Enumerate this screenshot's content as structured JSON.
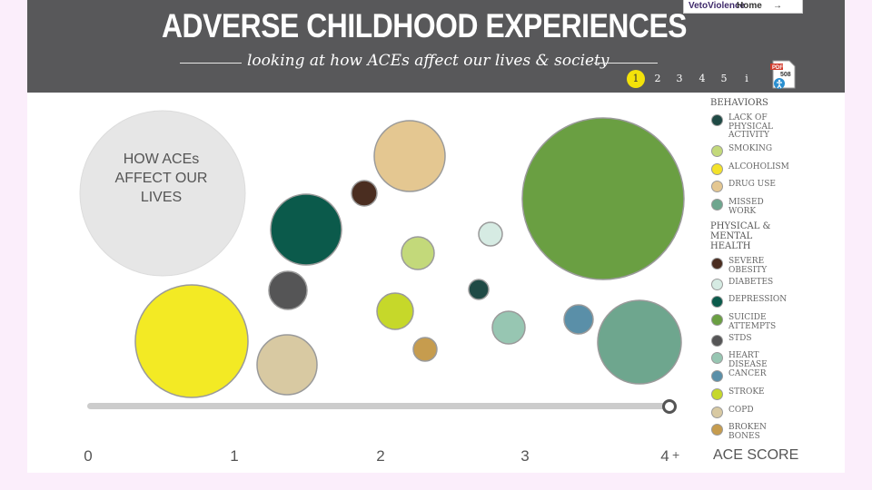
{
  "header": {
    "title": "ADVERSE CHILDHOOD EXPERIENCES",
    "subtitle": "looking at how ACEs affect our lives & society",
    "brand": "VetoViolence",
    "home_link": "Home",
    "home_arrow": "→",
    "pages": [
      "1",
      "2",
      "3",
      "4",
      "5",
      "i"
    ],
    "active_page": "1",
    "pdf_label": "508"
  },
  "center_label": "HOW ACEs AFFECT OUR LIVES",
  "legend": {
    "behaviors_title": "BEHAVIORS",
    "behaviors": [
      {
        "label": "LACK OF PHYSICAL ACTIVITY",
        "color": "#1f4a45"
      },
      {
        "label": "SMOKING",
        "color": "#c3d97a"
      },
      {
        "label": "ALCOHOLISM",
        "color": "#f3e22a"
      },
      {
        "label": "DRUG USE",
        "color": "#e4c791"
      },
      {
        "label": "MISSED WORK",
        "color": "#6ea68e"
      }
    ],
    "health_title": "PHYSICAL & MENTAL HEALTH",
    "health": [
      {
        "label": "SEVERE OBESITY",
        "color": "#4a2d20"
      },
      {
        "label": "DIABETES",
        "color": "#d6ebe3"
      },
      {
        "label": "DEPRESSION",
        "color": "#0b5a4b"
      },
      {
        "label": "SUICIDE ATTEMPTS",
        "color": "#6a9f42"
      },
      {
        "label": "STDS",
        "color": "#555556"
      },
      {
        "label": "HEART DISEASE",
        "color": "#97c6b2"
      },
      {
        "label": "CANCER",
        "color": "#5a8fa8"
      },
      {
        "label": "STROKE",
        "color": "#c6d82a"
      },
      {
        "label": "COPD",
        "color": "#d8c9a2"
      },
      {
        "label": "BROKEN BONES",
        "color": "#c69c4e"
      }
    ]
  },
  "slider": {
    "value": 4
  },
  "axis": {
    "ticks": [
      "0",
      "1",
      "2",
      "3",
      "4"
    ],
    "plus": "+",
    "label": "ACE SCORE"
  },
  "bubbles": [
    {
      "name": "how-aces-circle",
      "color": "#e6e6e6"
    },
    {
      "name": "alcoholism-bubble",
      "color": "#f3ea24"
    },
    {
      "name": "copd-bubble",
      "color": "#d8c9a2"
    },
    {
      "name": "stds-bubble",
      "color": "#555556"
    },
    {
      "name": "depression-bubble",
      "color": "#0b5a4b"
    },
    {
      "name": "severe-obesity-bubble",
      "color": "#4a2d20"
    },
    {
      "name": "drug-use-bubble",
      "color": "#e4c791"
    },
    {
      "name": "smoking-bubble",
      "color": "#c3d97a"
    },
    {
      "name": "stroke-bubble",
      "color": "#c6d82a"
    },
    {
      "name": "broken-bones-bubble",
      "color": "#c69c4e"
    },
    {
      "name": "diabetes-bubble",
      "color": "#d6ebe3"
    },
    {
      "name": "lack-of-physical-activity-bubble",
      "color": "#1f4a45"
    },
    {
      "name": "heart-disease-bubble",
      "color": "#97c6b2"
    },
    {
      "name": "suicide-attempts-bubble",
      "color": "#6a9f42"
    },
    {
      "name": "cancer-bubble",
      "color": "#5a8fa8"
    },
    {
      "name": "missed-work-bubble",
      "color": "#6ea68e"
    }
  ]
}
